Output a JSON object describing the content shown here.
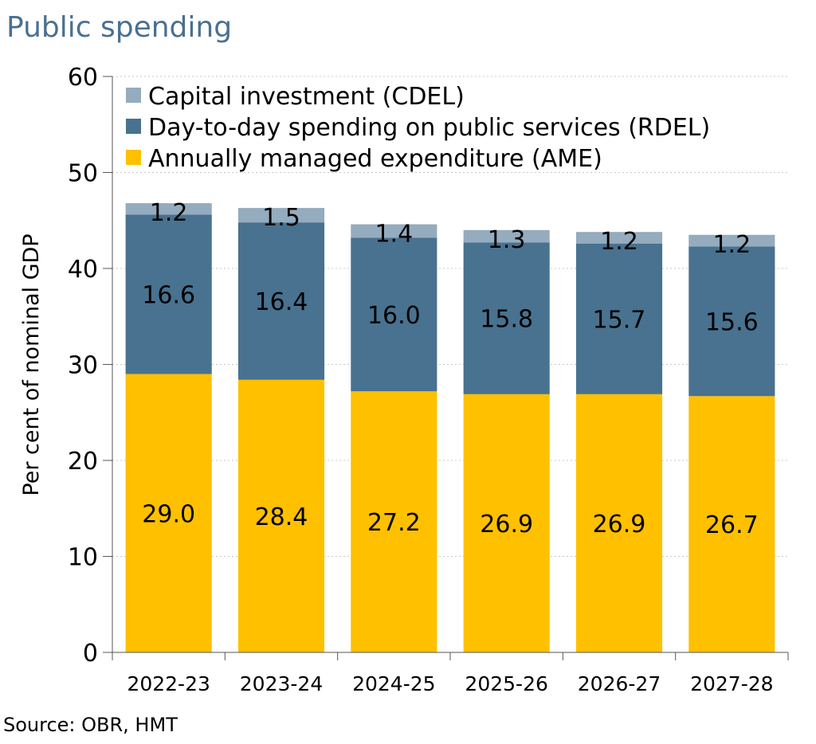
{
  "chart_data": {
    "type": "bar",
    "stacked": true,
    "title": "Public spending",
    "ylabel": "Per cent of nominal GDP",
    "xlabel": "",
    "ylim": [
      0,
      60
    ],
    "yticks": [
      0,
      10,
      20,
      30,
      40,
      50,
      60
    ],
    "grid": true,
    "legend_position": "top-left",
    "categories": [
      "2022-23",
      "2023-24",
      "2024-25",
      "2025-26",
      "2026-27",
      "2027-28"
    ],
    "series": [
      {
        "name": "Annually managed expenditure (AME)",
        "color": "#FFC000",
        "values": [
          29.0,
          28.4,
          27.2,
          26.9,
          26.9,
          26.7
        ],
        "labels": [
          "29.0",
          "28.4",
          "27.2",
          "26.9",
          "26.9",
          "26.7"
        ]
      },
      {
        "name": "Day-to-day spending on public services (RDEL)",
        "color": "#48728F",
        "values": [
          16.6,
          16.4,
          16.0,
          15.8,
          15.7,
          15.6
        ],
        "labels": [
          "16.6",
          "16.4",
          "16.0",
          "15.8",
          "15.7",
          "15.6"
        ]
      },
      {
        "name": "Capital investment (CDEL)",
        "color": "#95ABBE",
        "values": [
          1.2,
          1.5,
          1.4,
          1.3,
          1.2,
          1.2
        ],
        "labels": [
          "1.2",
          "1.5",
          "1.4",
          "1.3",
          "1.2",
          "1.2"
        ]
      }
    ],
    "legend_order": [
      2,
      1,
      0
    ],
    "source": "Source: OBR, HMT",
    "title_color": "#4A7090"
  }
}
